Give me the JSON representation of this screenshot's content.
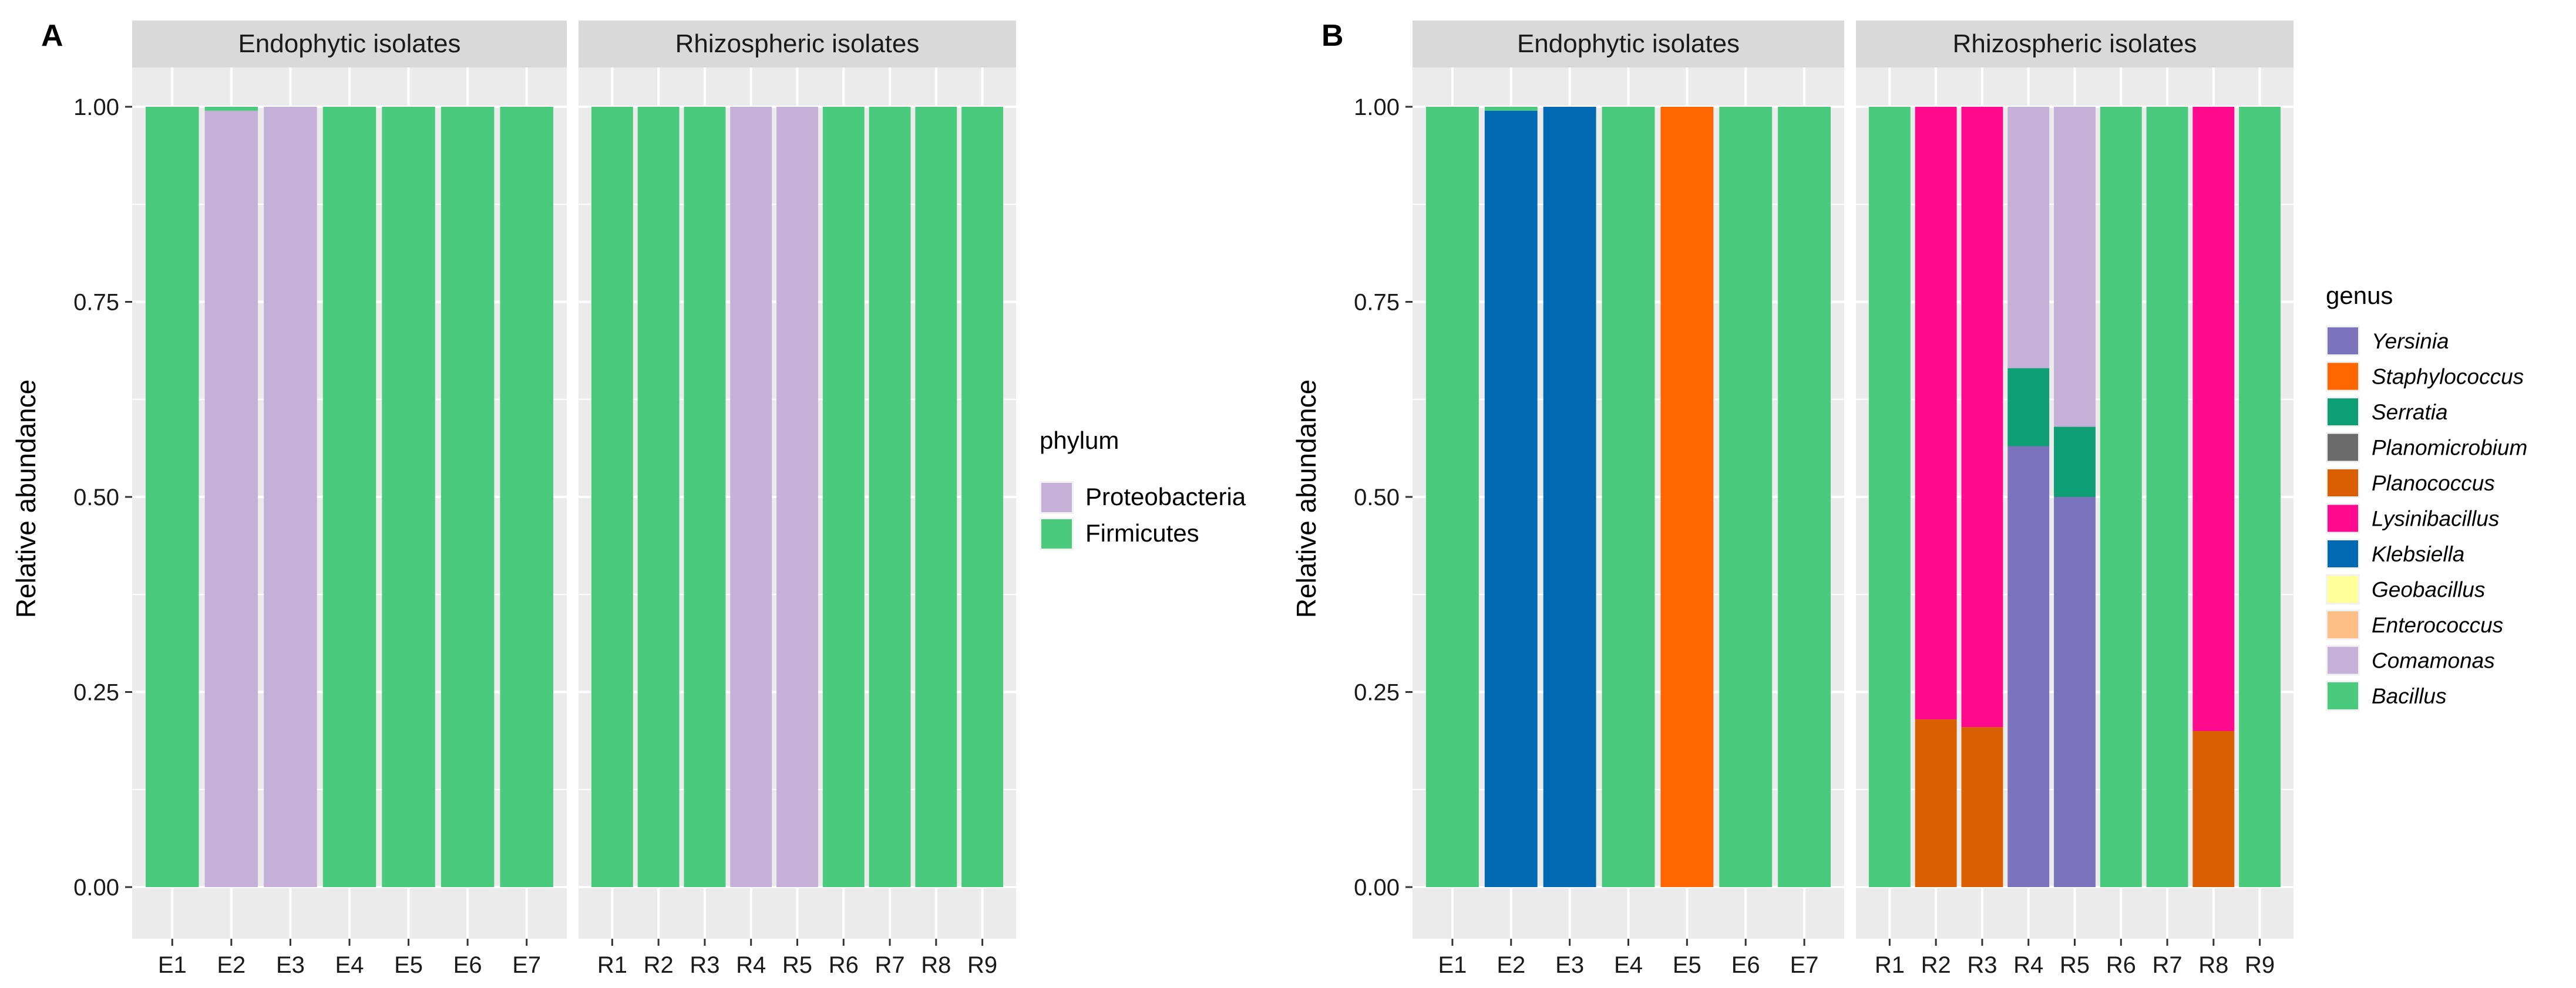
{
  "colors": {
    "Proteobacteria": "#C5B0D8",
    "Firmicutes": "#4ACA7C",
    "Yersinia": "#7B73BB",
    "Staphylococcus": "#FF6600",
    "Serratia": "#0E9F75",
    "Planomicrobium": "#6B6B6B",
    "Planococcus": "#D95F02",
    "Lysinibacillus": "#FF0A8E",
    "Klebsiella": "#0069B4",
    "Geobacillus": "#FFFF99",
    "Enterococcus": "#FDBF85",
    "Comamonas": "#C5B0D8",
    "Bacillus": "#4ACA7C"
  },
  "chart_data": [
    {
      "type": "bar",
      "stacked": true,
      "panel_label": "A",
      "ylabel": "Relative abundance",
      "ylim": [
        0,
        1
      ],
      "yticks": [
        "0.00",
        "0.25",
        "0.50",
        "0.75",
        "1.00"
      ],
      "legend_title": "phylum",
      "legend_entries": [
        "Proteobacteria",
        "Firmicutes"
      ],
      "facets": [
        {
          "title": "Endophytic isolates",
          "categories": [
            "E1",
            "E2",
            "E3",
            "E4",
            "E5",
            "E6",
            "E7"
          ],
          "stacks": [
            [
              {
                "taxon": "Firmicutes",
                "value": 1.0
              }
            ],
            [
              {
                "taxon": "Proteobacteria",
                "value": 0.995
              },
              {
                "taxon": "Firmicutes",
                "value": 0.005
              }
            ],
            [
              {
                "taxon": "Proteobacteria",
                "value": 1.0
              }
            ],
            [
              {
                "taxon": "Firmicutes",
                "value": 1.0
              }
            ],
            [
              {
                "taxon": "Firmicutes",
                "value": 1.0
              }
            ],
            [
              {
                "taxon": "Firmicutes",
                "value": 1.0
              }
            ],
            [
              {
                "taxon": "Firmicutes",
                "value": 1.0
              }
            ]
          ]
        },
        {
          "title": "Rhizospheric isolates",
          "categories": [
            "R1",
            "R2",
            "R3",
            "R4",
            "R5",
            "R6",
            "R7",
            "R8",
            "R9"
          ],
          "stacks": [
            [
              {
                "taxon": "Firmicutes",
                "value": 1.0
              }
            ],
            [
              {
                "taxon": "Firmicutes",
                "value": 1.0
              }
            ],
            [
              {
                "taxon": "Firmicutes",
                "value": 1.0
              }
            ],
            [
              {
                "taxon": "Proteobacteria",
                "value": 1.0
              }
            ],
            [
              {
                "taxon": "Proteobacteria",
                "value": 1.0
              }
            ],
            [
              {
                "taxon": "Firmicutes",
                "value": 1.0
              }
            ],
            [
              {
                "taxon": "Firmicutes",
                "value": 1.0
              }
            ],
            [
              {
                "taxon": "Firmicutes",
                "value": 1.0
              }
            ],
            [
              {
                "taxon": "Firmicutes",
                "value": 1.0
              }
            ]
          ]
        }
      ]
    },
    {
      "type": "bar",
      "stacked": true,
      "panel_label": "B",
      "ylabel": "Relative abundance",
      "ylim": [
        0,
        1
      ],
      "yticks": [
        "0.00",
        "0.25",
        "0.50",
        "0.75",
        "1.00"
      ],
      "legend_title": "genus",
      "legend_entries": [
        "Yersinia",
        "Staphylococcus",
        "Serratia",
        "Planomicrobium",
        "Planococcus",
        "Lysinibacillus",
        "Klebsiella",
        "Geobacillus",
        "Enterococcus",
        "Comamonas",
        "Bacillus"
      ],
      "facets": [
        {
          "title": "Endophytic isolates",
          "categories": [
            "E1",
            "E2",
            "E3",
            "E4",
            "E5",
            "E6",
            "E7"
          ],
          "stacks": [
            [
              {
                "taxon": "Bacillus",
                "value": 1.0
              }
            ],
            [
              {
                "taxon": "Klebsiella",
                "value": 0.995
              },
              {
                "taxon": "Bacillus",
                "value": 0.005
              }
            ],
            [
              {
                "taxon": "Klebsiella",
                "value": 1.0
              }
            ],
            [
              {
                "taxon": "Bacillus",
                "value": 1.0
              }
            ],
            [
              {
                "taxon": "Staphylococcus",
                "value": 1.0
              }
            ],
            [
              {
                "taxon": "Bacillus",
                "value": 1.0
              }
            ],
            [
              {
                "taxon": "Bacillus",
                "value": 1.0
              }
            ]
          ]
        },
        {
          "title": "Rhizospheric isolates",
          "categories": [
            "R1",
            "R2",
            "R3",
            "R4",
            "R5",
            "R6",
            "R7",
            "R8",
            "R9"
          ],
          "stacks": [
            [
              {
                "taxon": "Bacillus",
                "value": 1.0
              }
            ],
            [
              {
                "taxon": "Planococcus",
                "value": 0.215
              },
              {
                "taxon": "Lysinibacillus",
                "value": 0.785
              }
            ],
            [
              {
                "taxon": "Planococcus",
                "value": 0.205
              },
              {
                "taxon": "Lysinibacillus",
                "value": 0.795
              }
            ],
            [
              {
                "taxon": "Yersinia",
                "value": 0.565
              },
              {
                "taxon": "Serratia",
                "value": 0.1
              },
              {
                "taxon": "Comamonas",
                "value": 0.335
              }
            ],
            [
              {
                "taxon": "Yersinia",
                "value": 0.5
              },
              {
                "taxon": "Serratia",
                "value": 0.09
              },
              {
                "taxon": "Comamonas",
                "value": 0.41
              }
            ],
            [
              {
                "taxon": "Bacillus",
                "value": 1.0
              }
            ],
            [
              {
                "taxon": "Bacillus",
                "value": 1.0
              }
            ],
            [
              {
                "taxon": "Planococcus",
                "value": 0.2
              },
              {
                "taxon": "Lysinibacillus",
                "value": 0.8
              }
            ],
            [
              {
                "taxon": "Bacillus",
                "value": 1.0
              }
            ]
          ]
        }
      ]
    }
  ]
}
